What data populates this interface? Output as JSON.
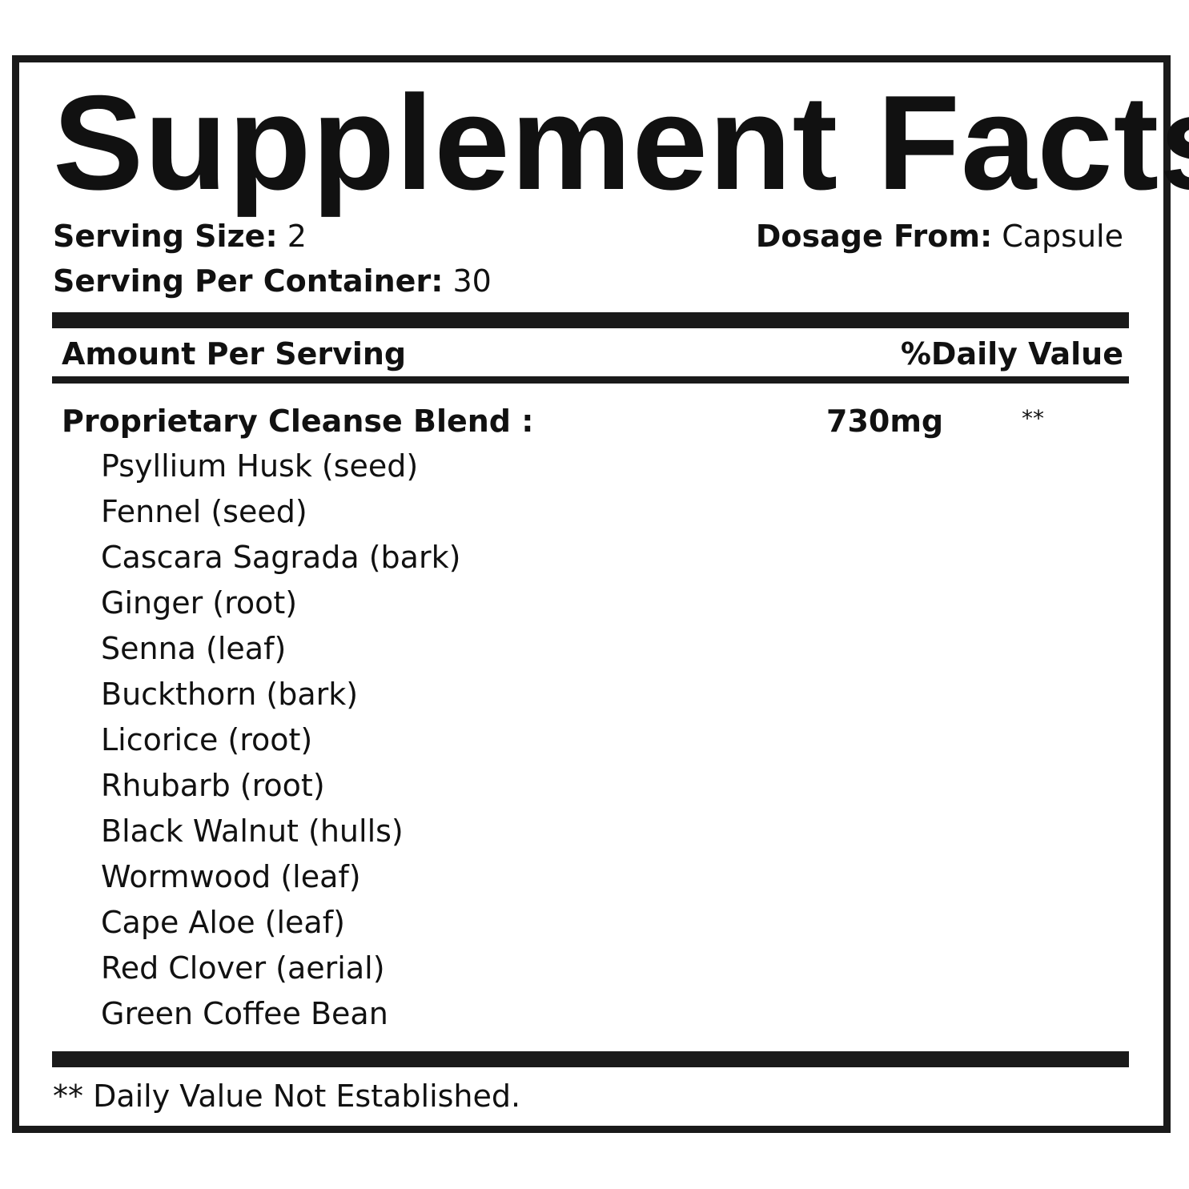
{
  "title": "Supplement Facts",
  "serving_size": {
    "label": "Serving Size:",
    "value": "2"
  },
  "dosage_form": {
    "label": "Dosage From:",
    "value": "Capsule"
  },
  "servings_per_container": {
    "label": "Serving Per Container:",
    "value": "30"
  },
  "header": {
    "amount": "Amount Per Serving",
    "daily_value": "%Daily Value"
  },
  "blend": {
    "name": "Proprietary Cleanse Blend :",
    "amount": "730mg",
    "dv": "**"
  },
  "ingredients": [
    "Psyllium Husk (seed)",
    "Fennel (seed)",
    "Cascara Sagrada (bark)",
    "Ginger (root)",
    "Senna (leaf)",
    "Buckthorn (bark)",
    "Licorice (root)",
    "Rhubarb (root)",
    "Black Walnut (hulls)",
    "Wormwood (leaf)",
    "Cape Aloe (leaf)",
    "Red Clover (aerial)",
    "Green Coffee Bean"
  ],
  "footnote": "** Daily Value Not Established."
}
